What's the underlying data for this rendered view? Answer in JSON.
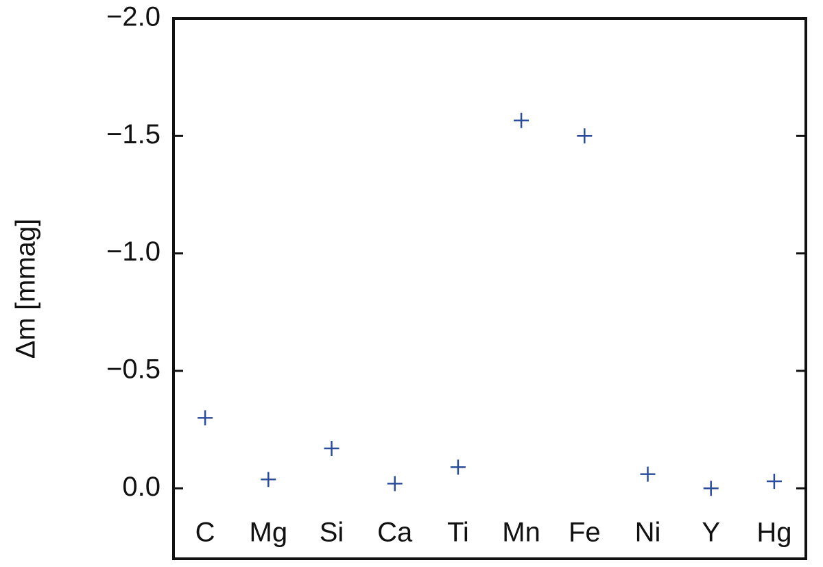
{
  "chart_data": {
    "type": "scatter",
    "ylabel": "Δm [mmag]",
    "categories": [
      "C",
      "Mg",
      "Si",
      "Ca",
      "Ti",
      "Mn",
      "Fe",
      "Ni",
      "Y",
      "Hg"
    ],
    "values": [
      -0.3,
      -0.038,
      -0.17,
      -0.02,
      -0.09,
      -1.566,
      -1.5,
      -0.06,
      0.0,
      -0.03
    ],
    "color": "#2a4d9b",
    "marker": "+",
    "ylim": [
      -2.0,
      0.3
    ],
    "yticks": [
      {
        "value": -2.0,
        "label": "−2.0"
      },
      {
        "value": -1.5,
        "label": "−1.5"
      },
      {
        "value": -1.0,
        "label": "−1.0"
      },
      {
        "value": -0.5,
        "label": "−0.5"
      },
      {
        "value": 0.0,
        "label": "0.0"
      }
    ],
    "grid": false
  }
}
